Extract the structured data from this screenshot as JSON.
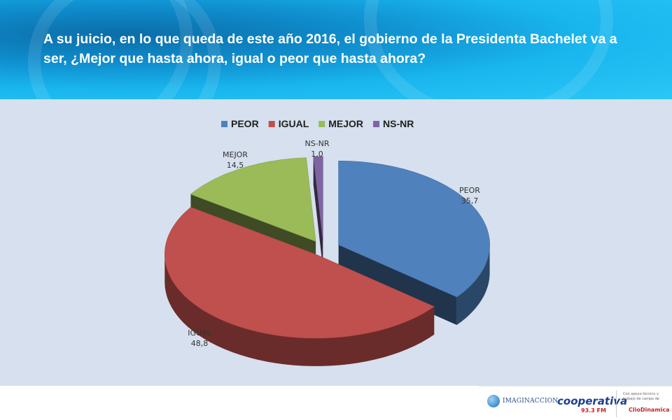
{
  "header": {
    "title": "A su juicio, en lo que queda de este año 2016,  el gobierno de la Presidenta Bachelet va a ser, ¿Mejor que hasta ahora, igual o  peor que hasta ahora?"
  },
  "chart_data": {
    "type": "pie",
    "style": "3d-exploded",
    "legend_position": "top",
    "series": [
      {
        "name": "PEOR",
        "value": 35.7,
        "label": "35,7",
        "color": "#4f81bd"
      },
      {
        "name": "IGUAL",
        "value": 48.8,
        "label": "48,8",
        "color": "#c0504d"
      },
      {
        "name": "MEJOR",
        "value": 14.5,
        "label": "14,5",
        "color": "#9bbb59"
      },
      {
        "name": "NS-NR",
        "value": 1.0,
        "label": "1,0",
        "color": "#8064a2"
      }
    ]
  },
  "footer": {
    "logo_imaginaccion": "IMAGINACCION",
    "logo_cooperativa": "cooperativa",
    "logo_cooperativa_sub": "93.3 FM",
    "support_text": "Con apoyo técnico y trabajo de campo de",
    "logo_cliodinamica": "ClioDinamica"
  }
}
